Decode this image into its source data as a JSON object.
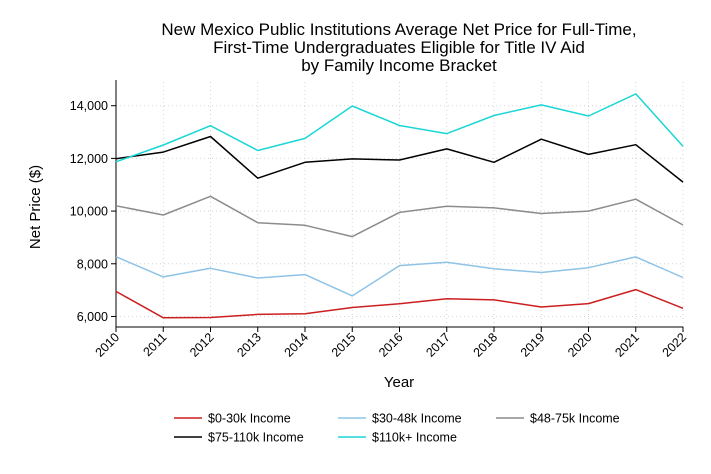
{
  "chart_data": {
    "type": "line",
    "title": [
      "New Mexico Public Institutions Average Net Price for Full-Time,",
      "First-Time Undergraduates Eligible for Title IV Aid",
      "by Family Income Bracket"
    ],
    "xlabel": "Year",
    "ylabel": "Net Price ($)",
    "x": [
      "2010",
      "2011",
      "2012",
      "2013",
      "2014",
      "2015",
      "2016",
      "2017",
      "2018",
      "2019",
      "2020",
      "2021",
      "2022"
    ],
    "ylim": [
      5600,
      14900
    ],
    "yticks": [
      6000,
      8000,
      10000,
      12000,
      14000
    ],
    "ytick_labels": [
      "6,000",
      "8,000",
      "10,000",
      "12,000",
      "14,000"
    ],
    "grid": true,
    "legend_position": "bottom",
    "series": [
      {
        "name": "$0-30k Income",
        "color": "#cc1f1f",
        "values": [
          6950,
          5950,
          5960,
          6080,
          6100,
          6340,
          6480,
          6670,
          6630,
          6360,
          6490,
          7020,
          6310
        ]
      },
      {
        "name": "$30-48k Income",
        "color": "#8ec3e6",
        "values": [
          8270,
          7500,
          7830,
          7460,
          7590,
          6780,
          7930,
          8060,
          7810,
          7670,
          7850,
          8260,
          7480
        ]
      },
      {
        "name": "$48-75k Income",
        "color": "#8c8c8c",
        "values": [
          10200,
          9850,
          10560,
          9560,
          9460,
          9030,
          9950,
          10180,
          10120,
          9910,
          10000,
          10450,
          9470
        ]
      },
      {
        "name": "$75-110k Income",
        "color": "#000000",
        "values": [
          11990,
          12240,
          12830,
          11250,
          11850,
          11980,
          11940,
          12360,
          11850,
          12730,
          12150,
          12520,
          11100
        ]
      },
      {
        "name": "$110k+ Income",
        "color": "#1ad6d6",
        "values": [
          11870,
          12510,
          13240,
          12300,
          12760,
          13990,
          13250,
          12940,
          13630,
          14030,
          13610,
          14450,
          12460
        ]
      }
    ]
  }
}
